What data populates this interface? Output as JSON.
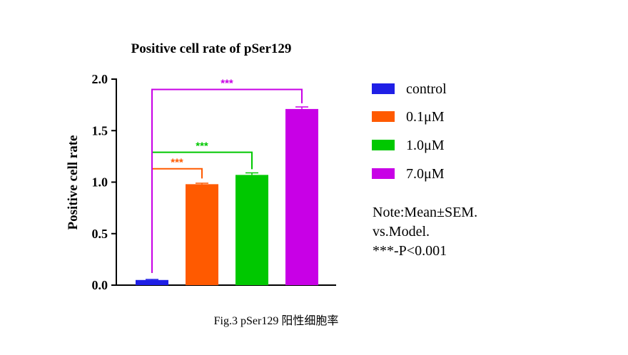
{
  "chart_data": {
    "type": "bar",
    "title": "Positive cell rate of  pSer129",
    "xlabel": "",
    "ylabel": "Positive cell rate",
    "ylim": [
      0,
      2.0
    ],
    "yticks": [
      "0.0",
      "0.5",
      "1.0",
      "1.5",
      "2.0"
    ],
    "categories": [
      "control",
      "0.1μM",
      "1.0μM",
      "7.0μM"
    ],
    "values": [
      0.05,
      0.98,
      1.07,
      1.71
    ],
    "errors": [
      0.005,
      0.01,
      0.02,
      0.02
    ],
    "colors": [
      "#1f1fe6",
      "#ff5a00",
      "#00c800",
      "#c800e6"
    ],
    "significance": [
      {
        "from": 0,
        "to": 1,
        "label": "***",
        "color": "#ff5a00",
        "level": 1.13
      },
      {
        "from": 0,
        "to": 2,
        "label": "***",
        "color": "#00c800",
        "level": 1.29
      },
      {
        "from": 0,
        "to": 3,
        "label": "***",
        "color": "#c800e6",
        "level": 1.9
      }
    ],
    "legend": [
      "control",
      "0.1μM",
      "1.0μM",
      "7.0μM"
    ],
    "legend_position": "right"
  },
  "note": {
    "line1": "Note:Mean±SEM.",
    "line2": "vs.Model.",
    "line3": "***-P<0.001"
  },
  "caption": "Fig.3 pSer129 阳性细胞率"
}
